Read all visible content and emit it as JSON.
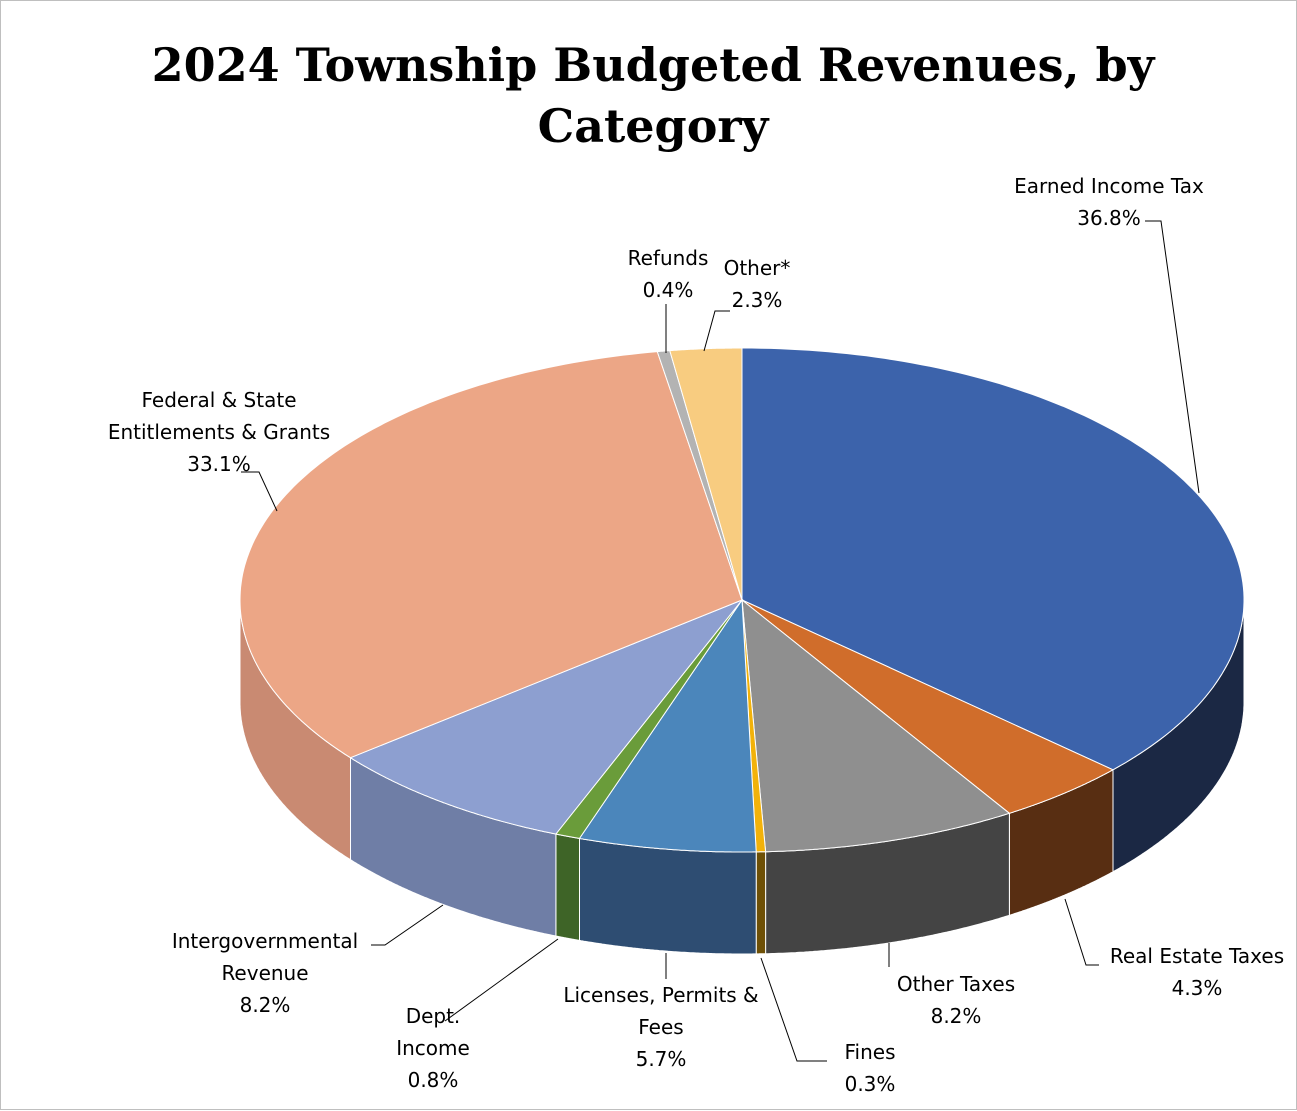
{
  "chart_data": {
    "type": "pie",
    "style": "3d",
    "title": "2024 Township Budgeted Revenues, by Category",
    "title_lines": [
      "2024 Township Budgeted Revenues, by",
      "Category"
    ],
    "legend": "none",
    "slices": [
      {
        "name": "Earned Income Tax",
        "label_lines": [
          "Earned Income Tax"
        ],
        "value": 36.8,
        "pct": "36.8%",
        "color": "#3c63ab",
        "side": "#1b2844"
      },
      {
        "name": "Real Estate Taxes",
        "label_lines": [
          "Real Estate Taxes"
        ],
        "value": 4.3,
        "pct": "4.3%",
        "color": "#d06d2b",
        "side": "#582e12"
      },
      {
        "name": "Other Taxes",
        "label_lines": [
          "Other Taxes"
        ],
        "value": 8.2,
        "pct": "8.2%",
        "color": "#8f8f8f",
        "side": "#444444"
      },
      {
        "name": "Fines",
        "label_lines": [
          "Fines"
        ],
        "value": 0.3,
        "pct": "0.3%",
        "color": "#f2b20a",
        "side": "#6e5006"
      },
      {
        "name": "Licenses, Permits & Fees",
        "label_lines": [
          "Licenses, Permits &",
          "Fees"
        ],
        "value": 5.7,
        "pct": "5.7%",
        "color": "#4b86bb",
        "side": "#2e4d72"
      },
      {
        "name": "Dept. Income",
        "label_lines": [
          "Dept.",
          "Income"
        ],
        "value": 0.8,
        "pct": "0.8%",
        "color": "#6a9c3a",
        "side": "#3e6427"
      },
      {
        "name": "Intergovernmental Revenue",
        "label_lines": [
          "Intergovernmental",
          "Revenue"
        ],
        "value": 8.2,
        "pct": "8.2%",
        "color": "#8d9fd0",
        "side": "#6f7ea6"
      },
      {
        "name": "Federal & State Entitlements & Grants",
        "label_lines": [
          "Federal & State",
          "Entitlements & Grants"
        ],
        "value": 33.1,
        "pct": "33.1%",
        "color": "#eca686",
        "side": "#c98a72"
      },
      {
        "name": "Refunds",
        "label_lines": [
          "Refunds"
        ],
        "value": 0.4,
        "pct": "0.4%",
        "color": "#b3b3b3",
        "side": "#888888"
      },
      {
        "name": "Other*",
        "label_lines": [
          "Other*"
        ],
        "value": 2.3,
        "pct": "2.3%",
        "color": "#f8cc80",
        "side": "#c9a060"
      }
    ]
  }
}
